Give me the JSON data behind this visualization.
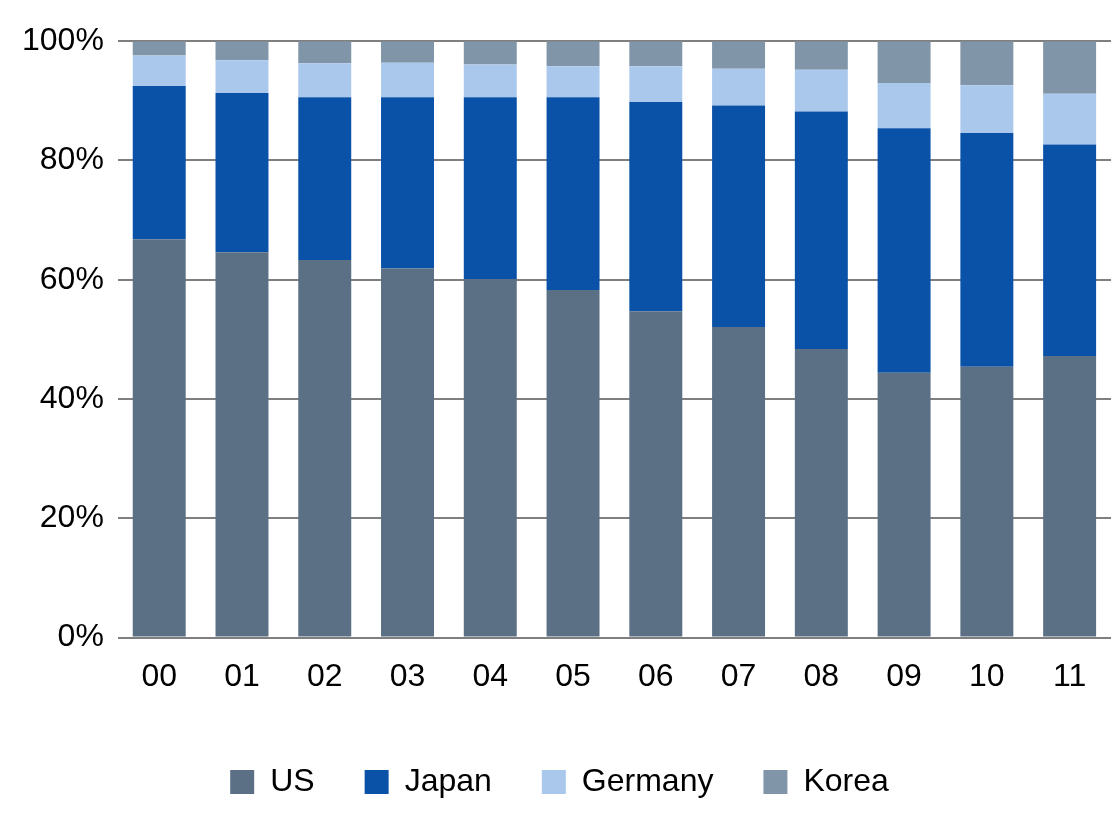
{
  "chart_data": {
    "type": "bar",
    "stacked": true,
    "categories": [
      "00",
      "01",
      "02",
      "03",
      "04",
      "05",
      "06",
      "07",
      "08",
      "09",
      "10",
      "11"
    ],
    "series": [
      {
        "name": "US",
        "color": "#5b7085",
        "values": [
          66.8,
          64.6,
          63.3,
          61.9,
          60.1,
          58.3,
          54.7,
          52.1,
          48.4,
          44.4,
          45.4,
          47.2
        ]
      },
      {
        "name": "Japan",
        "color": "#0a52a8",
        "values": [
          25.7,
          26.7,
          27.3,
          28.7,
          30.5,
          32.3,
          35.1,
          37.1,
          39.8,
          41.0,
          39.2,
          35.5
        ]
      },
      {
        "name": "Germany",
        "color": "#aac8ec",
        "values": [
          5.1,
          5.5,
          5.7,
          5.8,
          5.5,
          5.2,
          6.0,
          6.2,
          7.0,
          7.6,
          8.0,
          8.5
        ]
      },
      {
        "name": "Korea",
        "color": "#8195a8",
        "values": [
          2.4,
          3.2,
          3.7,
          3.6,
          3.9,
          4.2,
          4.2,
          4.6,
          4.8,
          7.0,
          7.4,
          8.8
        ]
      }
    ],
    "ylim": [
      0,
      100
    ],
    "yticks": [
      {
        "value": 0,
        "label": "0%"
      },
      {
        "value": 20,
        "label": "20%"
      },
      {
        "value": 40,
        "label": "40%"
      },
      {
        "value": 60,
        "label": "60%"
      },
      {
        "value": 80,
        "label": "80%"
      },
      {
        "value": 100,
        "label": "100%"
      }
    ],
    "grid": "y",
    "legend": "bottom"
  }
}
